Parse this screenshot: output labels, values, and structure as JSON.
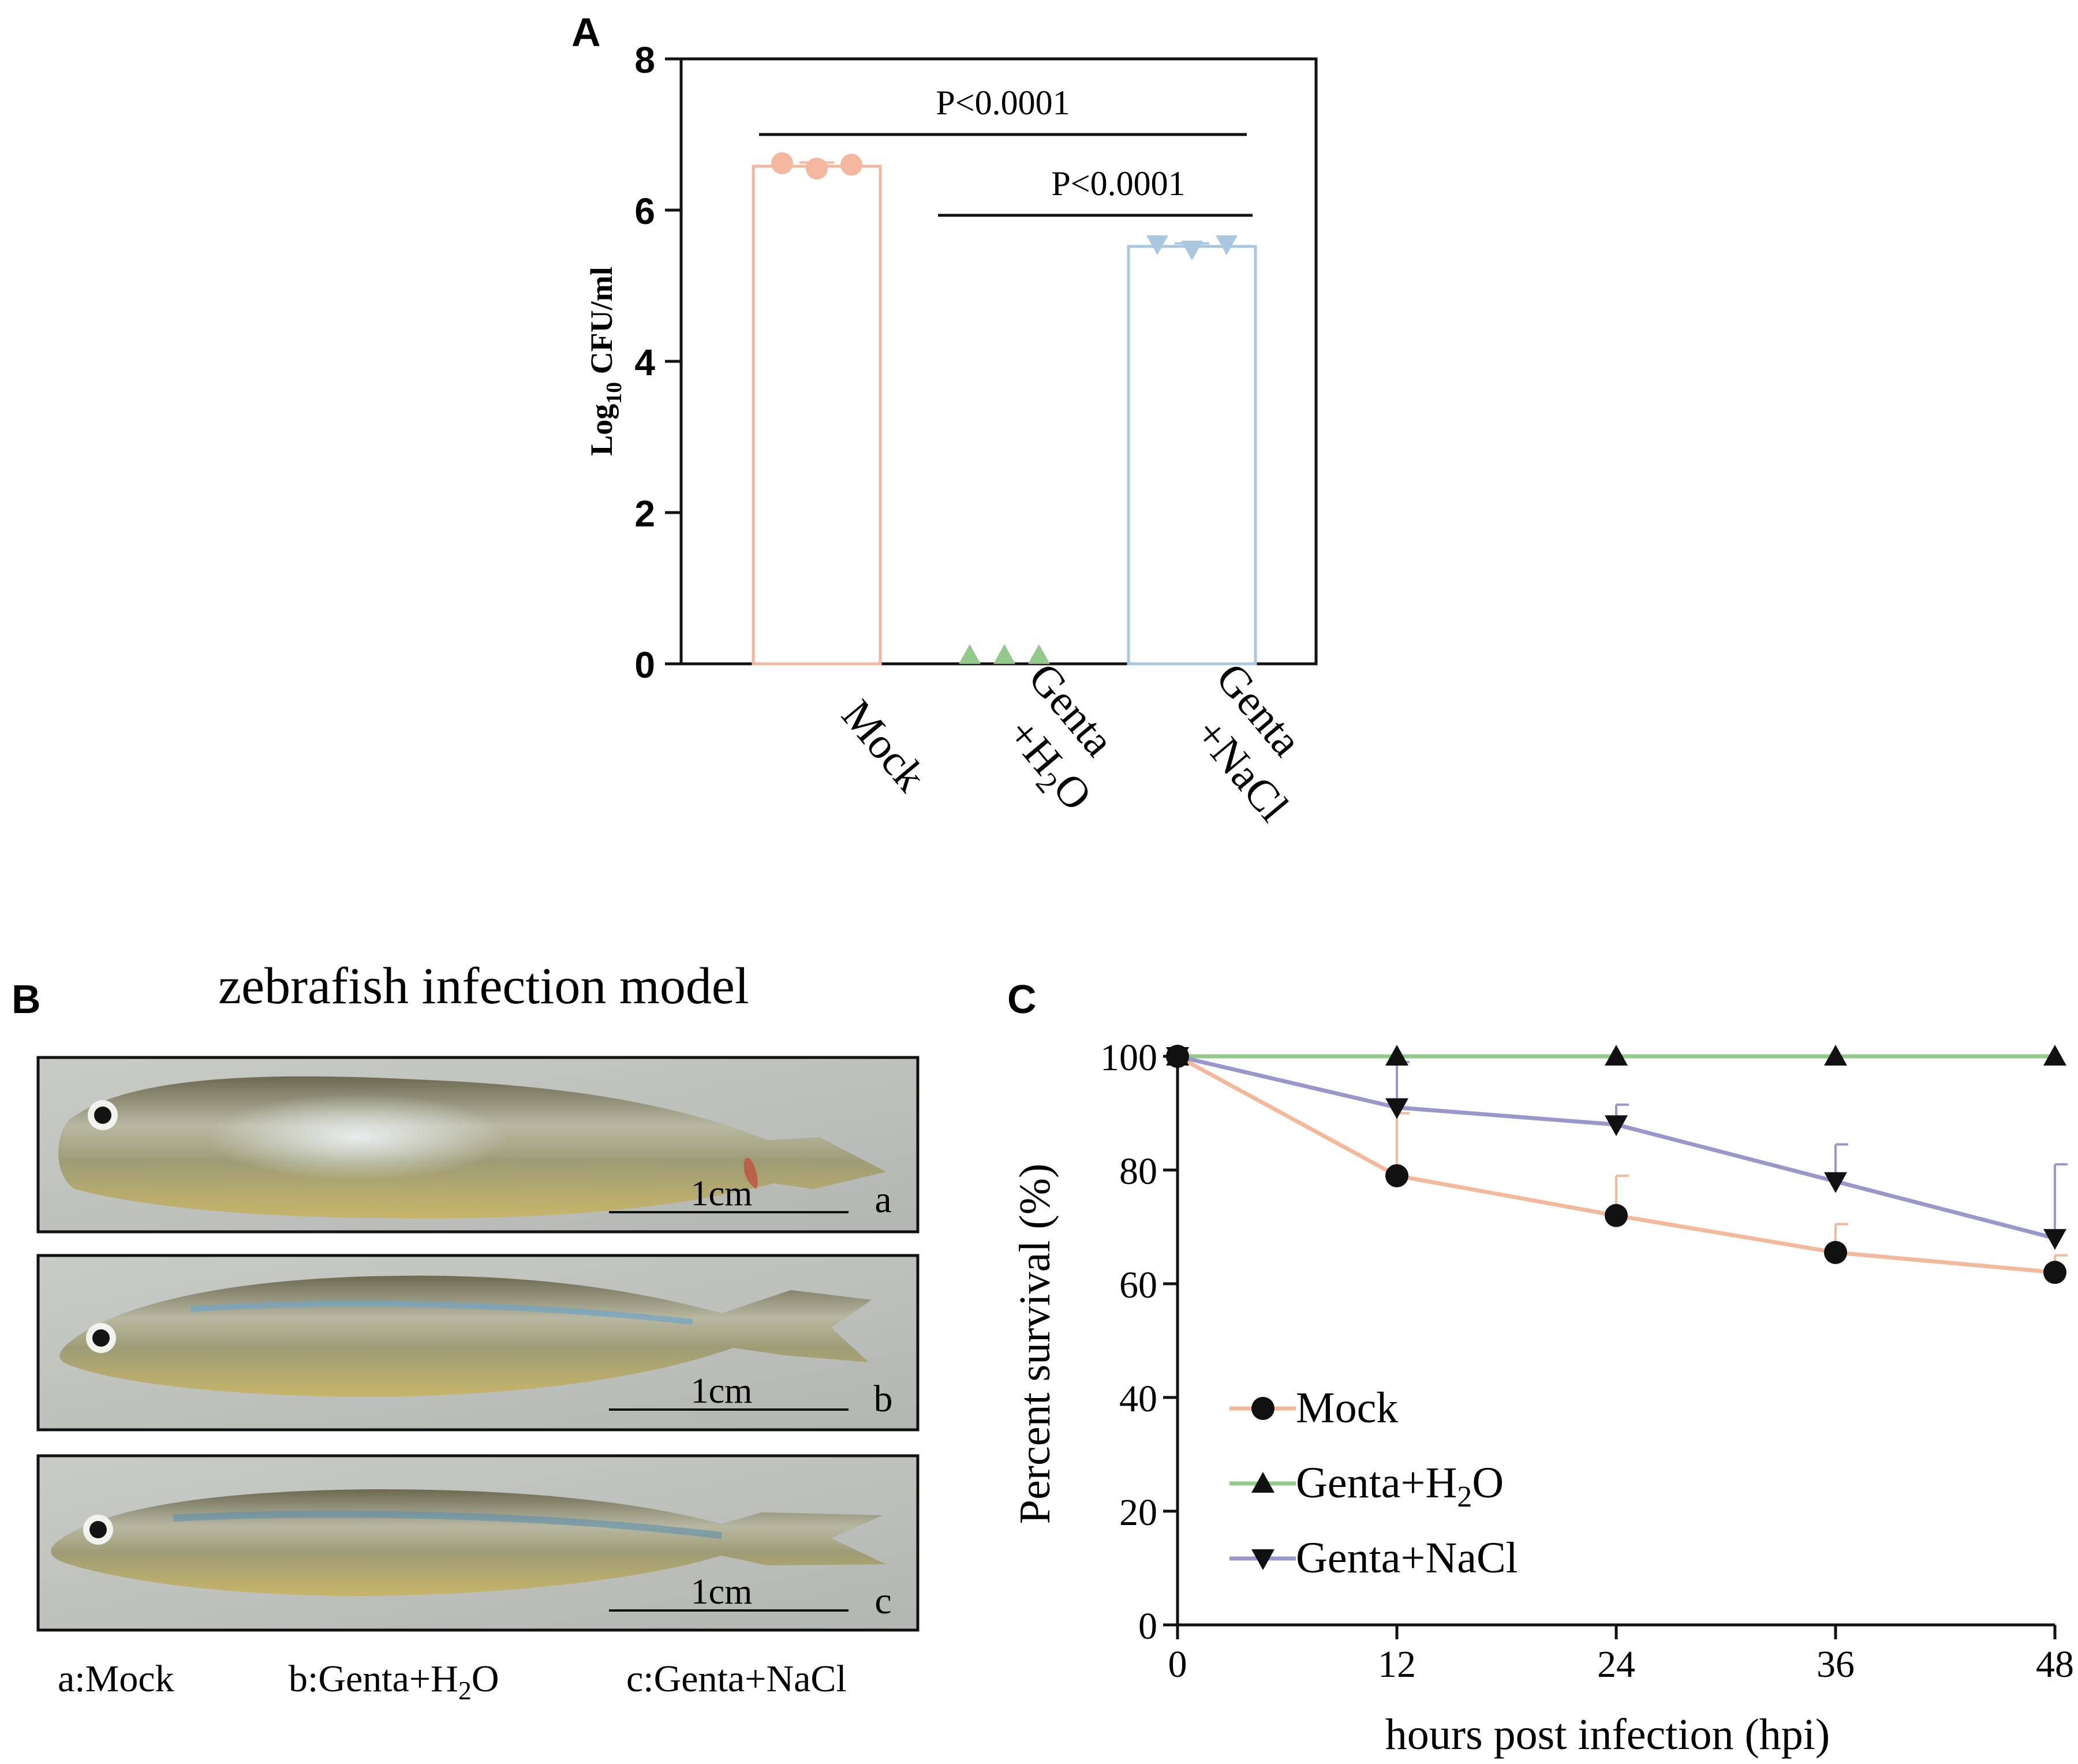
{
  "panels": {
    "A": {
      "letter": "A"
    },
    "B": {
      "letter": "B",
      "title": "zebrafish infection model",
      "photos": [
        {
          "tag": "a",
          "scale_label": "1cm"
        },
        {
          "tag": "b",
          "scale_label": "1cm"
        },
        {
          "tag": "c",
          "scale_label": "1cm"
        }
      ],
      "captions": [
        {
          "prefix": "a:Mock",
          "sub": "",
          "suffix": ""
        },
        {
          "prefix": "b:Genta+H",
          "sub": "2",
          "suffix": "O"
        },
        {
          "prefix": "c:Genta+NaCl",
          "sub": "",
          "suffix": ""
        }
      ]
    },
    "C": {
      "letter": "C"
    }
  },
  "chart_data": [
    {
      "id": "A",
      "type": "bar",
      "ylabel": {
        "prefix": "Log",
        "sub": "10",
        "suffix": " CFU/ml"
      },
      "ylim": [
        0,
        8
      ],
      "yticks": [
        0,
        2,
        4,
        6,
        8
      ],
      "categories": [
        {
          "name": "Mock",
          "lines": [
            {
              "prefix": "Mock",
              "sub": "",
              "suffix": ""
            }
          ]
        },
        {
          "name": "Genta+H2O",
          "lines": [
            {
              "prefix": "Genta",
              "sub": "",
              "suffix": ""
            },
            {
              "prefix": "+H",
              "sub": "2",
              "suffix": "O"
            }
          ]
        },
        {
          "name": "Genta+NaCl",
          "lines": [
            {
              "prefix": "Genta",
              "sub": "",
              "suffix": ""
            },
            {
              "prefix": "+NaCl",
              "sub": "",
              "suffix": ""
            }
          ]
        }
      ],
      "values": [
        6.58,
        0,
        5.52
      ],
      "errors": [
        0.05,
        0,
        0.04
      ],
      "points": [
        [
          6.62,
          6.55,
          6.6
        ],
        [
          0,
          0,
          0
        ],
        [
          5.55,
          5.48,
          5.55
        ]
      ],
      "markers": [
        "circle",
        "triangle-up",
        "triangle-down"
      ],
      "colors": [
        "#f4b8a0",
        "#93c98a",
        "#a9c8e0"
      ],
      "comparisons": [
        {
          "from": 0,
          "to": 2,
          "label": "P<0.0001"
        },
        {
          "from": 1,
          "to": 2,
          "label": "P<0.0001"
        }
      ]
    },
    {
      "id": "C",
      "type": "line",
      "xlabel": "hours post infection (hpi)",
      "ylabel": "Percent survival (%)",
      "x": [
        0,
        12,
        24,
        36,
        48
      ],
      "xlim": [
        0,
        48
      ],
      "ylim": [
        0,
        100
      ],
      "yticks": [
        0,
        20,
        40,
        60,
        80,
        100
      ],
      "series": [
        {
          "name": "Mock",
          "legend": {
            "prefix": "Mock",
            "sub": "",
            "suffix": ""
          },
          "marker": "circle",
          "color": "#f4b89a",
          "values": [
            100,
            79,
            72,
            65.5,
            62
          ],
          "errors": [
            0,
            11,
            7,
            5,
            3
          ]
        },
        {
          "name": "Genta+H2O",
          "legend": {
            "prefix": "Genta+H",
            "sub": "2",
            "suffix": "O"
          },
          "marker": "triangle-up",
          "color": "#93c98a",
          "values": [
            100,
            100,
            100,
            100,
            100
          ],
          "errors": [
            0,
            0,
            0,
            0,
            0
          ]
        },
        {
          "name": "Genta+NaCl",
          "legend": {
            "prefix": "Genta+NaCl",
            "sub": "",
            "suffix": ""
          },
          "marker": "triangle-down",
          "color": "#9898cc",
          "values": [
            100,
            91,
            88,
            78,
            68
          ],
          "errors": [
            0,
            8,
            3.5,
            6.5,
            13
          ]
        }
      ]
    }
  ]
}
